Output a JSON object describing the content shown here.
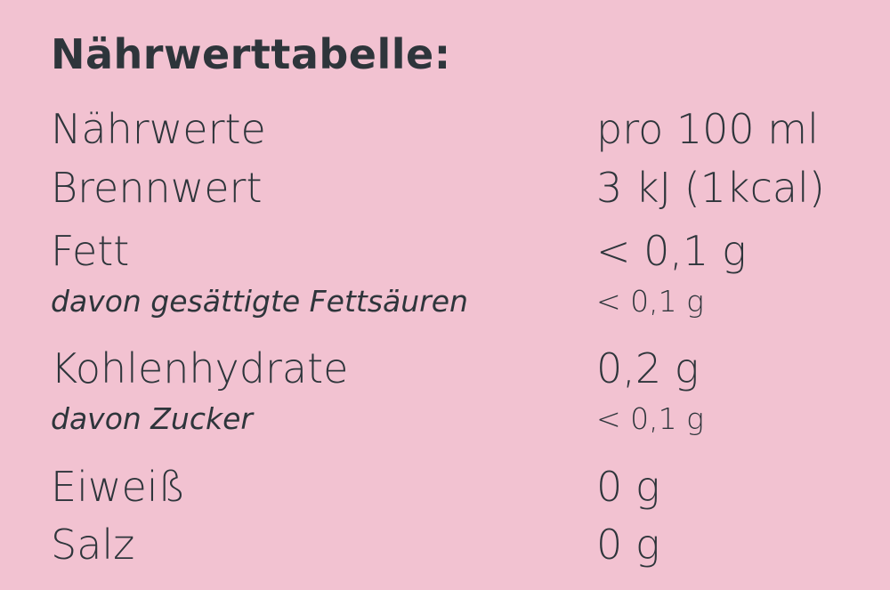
{
  "title": "Nährwerttabelle:",
  "rows": [
    {
      "label": "Nährwerte",
      "value": "pro 100 ml",
      "sub": false
    },
    {
      "label": "Brennwert",
      "value": "3 kJ (1kcal)",
      "sub": false
    },
    {
      "label": "Fett",
      "value": "< 0,1 g",
      "sub": false
    },
    {
      "label": "davon gesättigte Fettsäuren",
      "value": "< 0,1 g",
      "sub": true
    },
    {
      "label": "Kohlenhydrate",
      "value": "0,2 g",
      "sub": false
    },
    {
      "label": "davon Zucker",
      "value": "< 0,1 g",
      "sub": true
    },
    {
      "label": "Eiweiß",
      "value": "0 g",
      "sub": false
    },
    {
      "label": "Salz",
      "value": "0 g",
      "sub": false
    }
  ]
}
